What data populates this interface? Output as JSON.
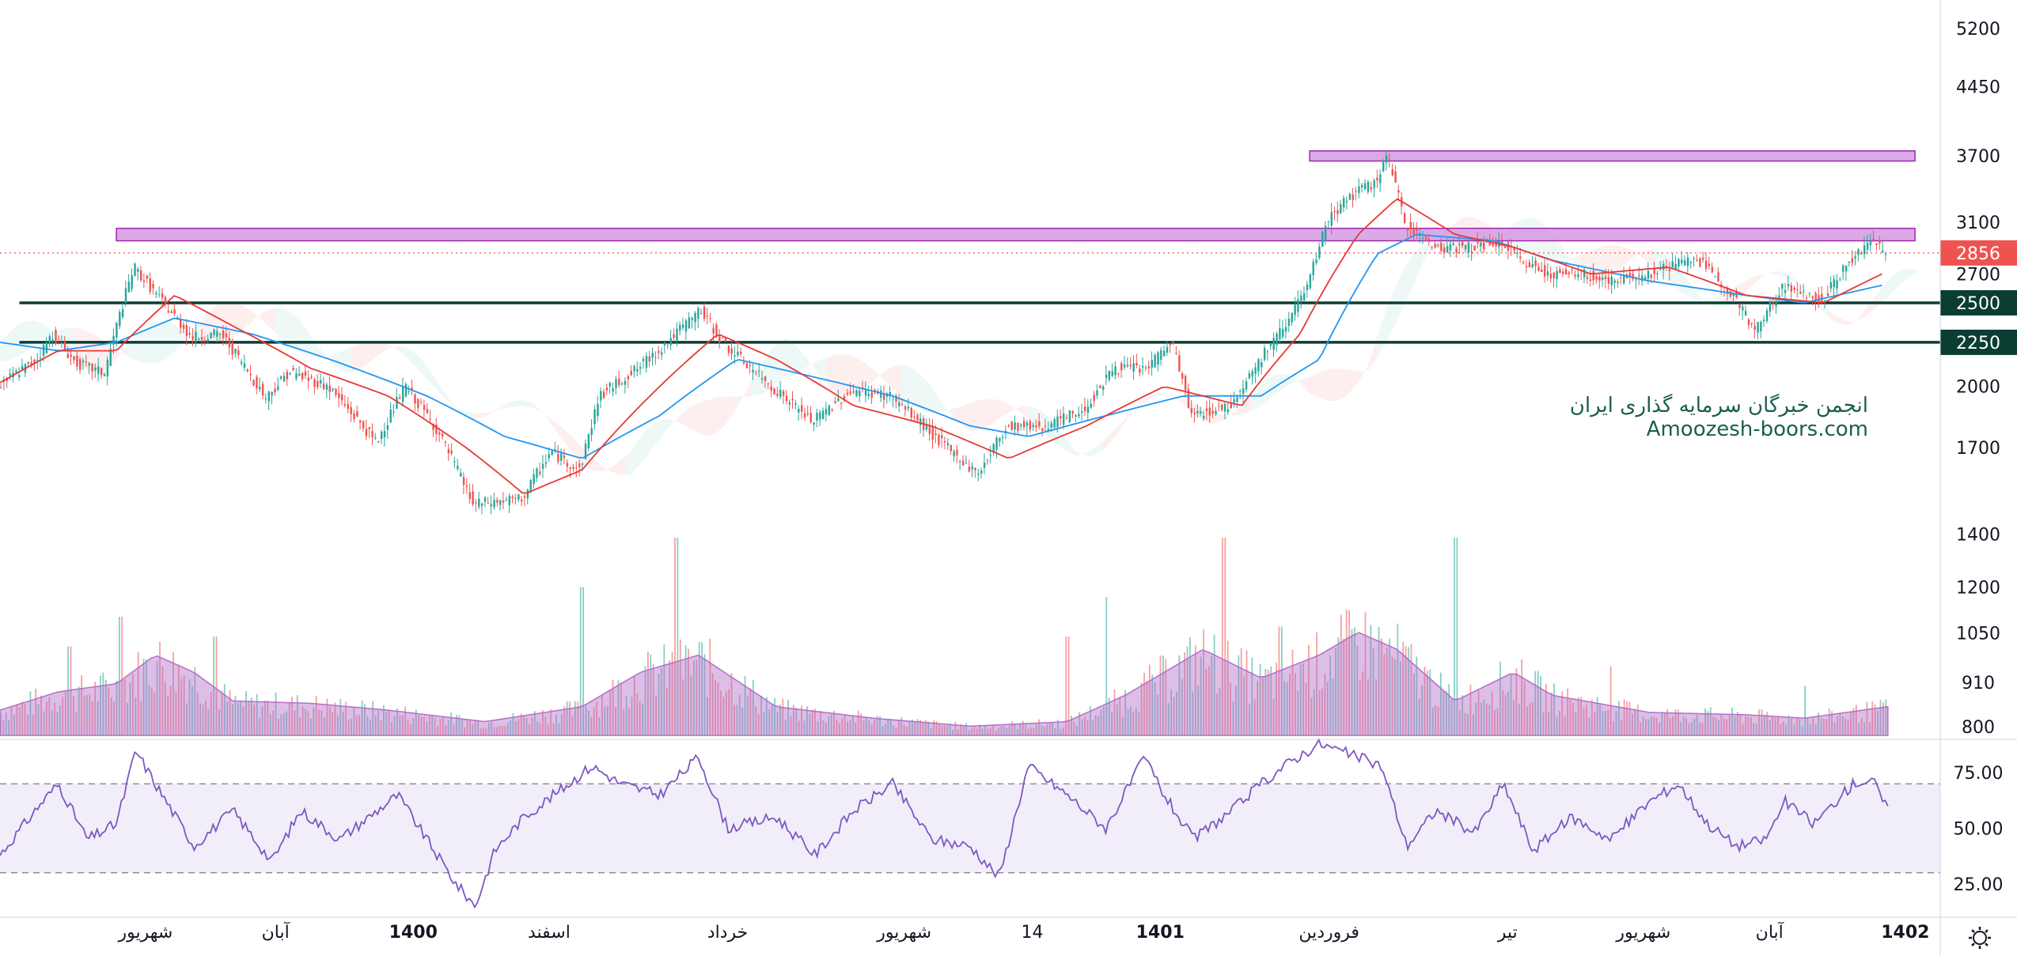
{
  "watermark": {
    "line1": "انجمن خبرگان سرمایه گذاری ایران",
    "line2": "Amoozesh-boors.com"
  },
  "colors": {
    "up": "#26a69a",
    "down": "#ef5350",
    "ma_fast": "#e53935",
    "ma_slow": "#2196f3",
    "zone": "#d59ae0",
    "zone_border": "#9c27b0",
    "support": "#0b3d33",
    "rsi": "#7e57c2",
    "volume_ma": "#b46ec8",
    "price_badge": "#ef5350"
  },
  "chart_data": [
    {
      "type": "candlestick",
      "scale": "log",
      "price_axis_ticks": [
        "5200",
        "4450",
        "3700",
        "3100",
        "2700",
        "2000",
        "1700",
        "1400",
        "1200",
        "1050",
        "910",
        "800"
      ],
      "price_axis_values": [
        5200,
        4450,
        3700,
        3100,
        2700,
        2000,
        1700,
        1400,
        1200,
        1050,
        910,
        800
      ],
      "ylim": [
        780,
        5400
      ],
      "time_labels": [
        {
          "label": "شهریور",
          "pos": 0.075
        },
        {
          "label": "آبان",
          "pos": 0.142
        },
        {
          "label": "1400",
          "pos": 0.213
        },
        {
          "label": "اسفند",
          "pos": 0.283
        },
        {
          "label": "خرداد",
          "pos": 0.375
        },
        {
          "label": "شهریور",
          "pos": 0.466
        },
        {
          "label": "14",
          "pos": 0.532
        },
        {
          "label": "1401",
          "pos": 0.598
        },
        {
          "label": "فروردین",
          "pos": 0.685
        },
        {
          "label": "تیر",
          "pos": 0.777
        },
        {
          "label": "شهریور",
          "pos": 0.847
        },
        {
          "label": "آبان",
          "pos": 0.912
        },
        {
          "label": "1402",
          "pos": 0.982
        }
      ],
      "price_keypoints": [
        [
          0,
          2000
        ],
        [
          0.02,
          2150
        ],
        [
          0.028,
          2300
        ],
        [
          0.04,
          2130
        ],
        [
          0.055,
          2070
        ],
        [
          0.065,
          2520
        ],
        [
          0.07,
          2750
        ],
        [
          0.085,
          2500
        ],
        [
          0.1,
          2280
        ],
        [
          0.115,
          2300
        ],
        [
          0.138,
          1940
        ],
        [
          0.15,
          2080
        ],
        [
          0.17,
          2000
        ],
        [
          0.195,
          1720
        ],
        [
          0.21,
          2000
        ],
        [
          0.225,
          1800
        ],
        [
          0.245,
          1460
        ],
        [
          0.27,
          1480
        ],
        [
          0.285,
          1680
        ],
        [
          0.3,
          1600
        ],
        [
          0.31,
          1950
        ],
        [
          0.33,
          2100
        ],
        [
          0.345,
          2250
        ],
        [
          0.362,
          2450
        ],
        [
          0.375,
          2230
        ],
        [
          0.395,
          2030
        ],
        [
          0.42,
          1820
        ],
        [
          0.44,
          1980
        ],
        [
          0.46,
          1950
        ],
        [
          0.485,
          1730
        ],
        [
          0.505,
          1580
        ],
        [
          0.52,
          1800
        ],
        [
          0.54,
          1800
        ],
        [
          0.56,
          1880
        ],
        [
          0.575,
          2100
        ],
        [
          0.592,
          2100
        ],
        [
          0.605,
          2250
        ],
        [
          0.615,
          1850
        ],
        [
          0.635,
          1900
        ],
        [
          0.66,
          2300
        ],
        [
          0.675,
          2600
        ],
        [
          0.685,
          3100
        ],
        [
          0.695,
          3300
        ],
        [
          0.71,
          3450
        ],
        [
          0.716,
          3700
        ],
        [
          0.725,
          3100
        ],
        [
          0.74,
          2900
        ],
        [
          0.755,
          2900
        ],
        [
          0.775,
          2930
        ],
        [
          0.785,
          2800
        ],
        [
          0.8,
          2700
        ],
        [
          0.815,
          2700
        ],
        [
          0.832,
          2650
        ],
        [
          0.85,
          2700
        ],
        [
          0.875,
          2820
        ],
        [
          0.895,
          2550
        ],
        [
          0.905,
          2310
        ],
        [
          0.92,
          2610
        ],
        [
          0.94,
          2520
        ],
        [
          0.955,
          2800
        ],
        [
          0.965,
          2950
        ],
        [
          0.973,
          2860
        ]
      ],
      "ma_fast_keypoints": [
        [
          0,
          2020
        ],
        [
          0.03,
          2200
        ],
        [
          0.06,
          2200
        ],
        [
          0.09,
          2550
        ],
        [
          0.12,
          2350
        ],
        [
          0.16,
          2100
        ],
        [
          0.2,
          1950
        ],
        [
          0.24,
          1700
        ],
        [
          0.27,
          1500
        ],
        [
          0.3,
          1600
        ],
        [
          0.34,
          2000
        ],
        [
          0.37,
          2300
        ],
        [
          0.4,
          2150
        ],
        [
          0.44,
          1900
        ],
        [
          0.48,
          1800
        ],
        [
          0.52,
          1650
        ],
        [
          0.56,
          1800
        ],
        [
          0.6,
          2000
        ],
        [
          0.64,
          1900
        ],
        [
          0.67,
          2300
        ],
        [
          0.7,
          3000
        ],
        [
          0.72,
          3300
        ],
        [
          0.75,
          3000
        ],
        [
          0.78,
          2900
        ],
        [
          0.82,
          2700
        ],
        [
          0.86,
          2750
        ],
        [
          0.9,
          2550
        ],
        [
          0.94,
          2500
        ],
        [
          0.97,
          2700
        ]
      ],
      "ma_slow_keypoints": [
        [
          0,
          2250
        ],
        [
          0.03,
          2200
        ],
        [
          0.06,
          2250
        ],
        [
          0.09,
          2400
        ],
        [
          0.13,
          2300
        ],
        [
          0.17,
          2150
        ],
        [
          0.22,
          1950
        ],
        [
          0.26,
          1750
        ],
        [
          0.3,
          1650
        ],
        [
          0.34,
          1850
        ],
        [
          0.38,
          2150
        ],
        [
          0.42,
          2050
        ],
        [
          0.46,
          1950
        ],
        [
          0.5,
          1800
        ],
        [
          0.53,
          1750
        ],
        [
          0.57,
          1850
        ],
        [
          0.61,
          1950
        ],
        [
          0.65,
          1950
        ],
        [
          0.68,
          2150
        ],
        [
          0.71,
          2850
        ],
        [
          0.73,
          3000
        ],
        [
          0.77,
          2950
        ],
        [
          0.8,
          2800
        ],
        [
          0.85,
          2650
        ],
        [
          0.9,
          2550
        ],
        [
          0.93,
          2500
        ],
        [
          0.97,
          2620
        ]
      ],
      "horizontal_zones": [
        {
          "x_start": 0.06,
          "x_end": 0.987,
          "low": 2950,
          "high": 3050
        },
        {
          "x_start": 0.675,
          "x_end": 0.987,
          "low": 3650,
          "high": 3750
        }
      ],
      "support_lines": [
        {
          "value": 2500,
          "label": "2500"
        },
        {
          "value": 2250,
          "label": "2250"
        }
      ],
      "last_price": {
        "value": 2856,
        "label": "2856"
      }
    },
    {
      "type": "line",
      "name": "RSI",
      "axis_ticks": [
        "75.00",
        "50.00",
        "25.00"
      ],
      "axis_values": [
        75,
        50,
        25
      ],
      "upper_band": 70,
      "lower_band": 30,
      "ylim": [
        10,
        90
      ],
      "keypoints": [
        [
          0,
          38
        ],
        [
          0.02,
          60
        ],
        [
          0.03,
          70
        ],
        [
          0.045,
          45
        ],
        [
          0.06,
          52
        ],
        [
          0.07,
          85
        ],
        [
          0.08,
          70
        ],
        [
          0.1,
          42
        ],
        [
          0.12,
          58
        ],
        [
          0.14,
          35
        ],
        [
          0.155,
          58
        ],
        [
          0.175,
          45
        ],
        [
          0.19,
          55
        ],
        [
          0.205,
          65
        ],
        [
          0.22,
          45
        ],
        [
          0.235,
          25
        ],
        [
          0.245,
          15
        ],
        [
          0.255,
          40
        ],
        [
          0.27,
          55
        ],
        [
          0.29,
          68
        ],
        [
          0.305,
          78
        ],
        [
          0.32,
          70
        ],
        [
          0.34,
          65
        ],
        [
          0.36,
          82
        ],
        [
          0.375,
          50
        ],
        [
          0.4,
          55
        ],
        [
          0.42,
          38
        ],
        [
          0.44,
          58
        ],
        [
          0.46,
          70
        ],
        [
          0.48,
          45
        ],
        [
          0.5,
          42
        ],
        [
          0.515,
          28
        ],
        [
          0.53,
          78
        ],
        [
          0.55,
          65
        ],
        [
          0.57,
          50
        ],
        [
          0.59,
          82
        ],
        [
          0.6,
          65
        ],
        [
          0.615,
          45
        ],
        [
          0.635,
          58
        ],
        [
          0.65,
          70
        ],
        [
          0.665,
          80
        ],
        [
          0.68,
          88
        ],
        [
          0.7,
          82
        ],
        [
          0.712,
          78
        ],
        [
          0.725,
          42
        ],
        [
          0.74,
          58
        ],
        [
          0.76,
          48
        ],
        [
          0.775,
          70
        ],
        [
          0.79,
          40
        ],
        [
          0.81,
          55
        ],
        [
          0.83,
          45
        ],
        [
          0.85,
          62
        ],
        [
          0.865,
          70
        ],
        [
          0.88,
          52
        ],
        [
          0.895,
          42
        ],
        [
          0.91,
          45
        ],
        [
          0.92,
          62
        ],
        [
          0.935,
          52
        ],
        [
          0.955,
          70
        ],
        [
          0.965,
          72
        ],
        [
          0.973,
          58
        ]
      ]
    },
    {
      "type": "area",
      "name": "Volume",
      "volume_ma_keypoints": [
        [
          0,
          0.22
        ],
        [
          0.03,
          0.38
        ],
        [
          0.06,
          0.45
        ],
        [
          0.08,
          0.7
        ],
        [
          0.1,
          0.55
        ],
        [
          0.12,
          0.3
        ],
        [
          0.16,
          0.28
        ],
        [
          0.2,
          0.22
        ],
        [
          0.25,
          0.12
        ],
        [
          0.3,
          0.25
        ],
        [
          0.33,
          0.55
        ],
        [
          0.36,
          0.7
        ],
        [
          0.4,
          0.25
        ],
        [
          0.45,
          0.15
        ],
        [
          0.5,
          0.08
        ],
        [
          0.55,
          0.12
        ],
        [
          0.58,
          0.35
        ],
        [
          0.62,
          0.75
        ],
        [
          0.65,
          0.5
        ],
        [
          0.68,
          0.7
        ],
        [
          0.7,
          0.9
        ],
        [
          0.72,
          0.75
        ],
        [
          0.75,
          0.3
        ],
        [
          0.78,
          0.55
        ],
        [
          0.8,
          0.35
        ],
        [
          0.85,
          0.2
        ],
        [
          0.9,
          0.18
        ],
        [
          0.93,
          0.15
        ],
        [
          0.973,
          0.25
        ]
      ],
      "volume_spikes": [
        [
          0.035,
          0.45
        ],
        [
          0.062,
          0.6
        ],
        [
          0.11,
          0.5
        ],
        [
          0.3,
          0.75
        ],
        [
          0.348,
          1.0
        ],
        [
          0.55,
          0.5
        ],
        [
          0.57,
          0.7
        ],
        [
          0.63,
          1.0
        ],
        [
          0.66,
          0.55
        ],
        [
          0.75,
          1.0
        ],
        [
          0.83,
          0.35
        ],
        [
          0.93,
          0.25
        ]
      ]
    }
  ]
}
